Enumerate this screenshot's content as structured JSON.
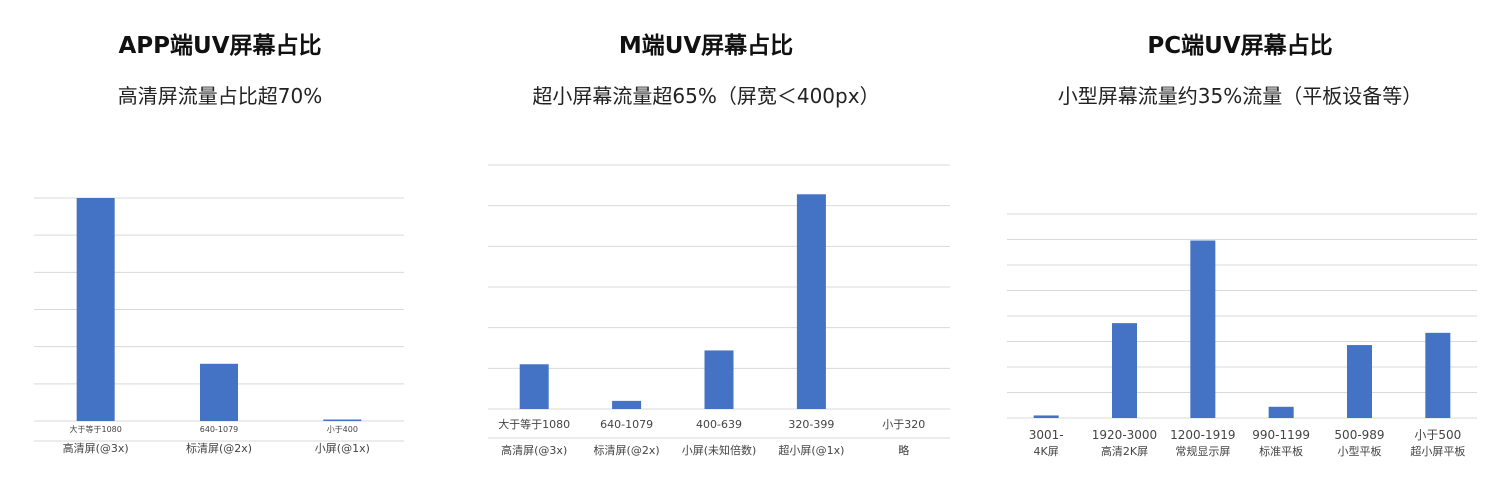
{
  "chart_data": [
    {
      "type": "bar",
      "title": "APP端UV屏幕占比",
      "subtitle": "高清屏流量占比超70%",
      "categories": [
        "大于等于1080",
        "640-1079",
        "小于400"
      ],
      "category_groups": [
        "高清屏(@3x)",
        "标清屏(@2x)",
        "小屏(@1x)"
      ],
      "values": [
        72.5,
        18.6,
        0.3
      ],
      "ylim": [
        0,
        72.5
      ],
      "grid": true
    },
    {
      "type": "bar",
      "title": "M端UV屏幕占比",
      "subtitle": "超小屏幕流量超65%（屏宽＜400px）",
      "categories": [
        "大于等于1080",
        "640-1079",
        "400-639",
        "320-399",
        "小于320"
      ],
      "category_groups": [
        "高清屏(@3x)",
        "标清屏(@2x)",
        "小屏(未知倍数)",
        "超小屏(@1x)",
        "略"
      ],
      "values": [
        11,
        2,
        14.4,
        52.8,
        0
      ],
      "ylim": [
        0,
        60
      ],
      "grid": true
    },
    {
      "type": "bar",
      "title": "PC端UV屏幕占比",
      "subtitle": "小型屏幕流量约35%流量（平板设备等）",
      "categories": [
        "3001-",
        "1920-3000",
        "1200-1919",
        "990-1199",
        "500-989",
        "小于500"
      ],
      "category_groups": [
        "4K屏",
        "高清2K屏",
        "常规显示屏",
        "标准平板",
        "小型平板",
        "超小屏平板"
      ],
      "values": [
        0.5,
        18.6,
        34.8,
        2.2,
        14.3,
        16.7
      ],
      "ylim": [
        0,
        40
      ],
      "grid": true
    }
  ]
}
